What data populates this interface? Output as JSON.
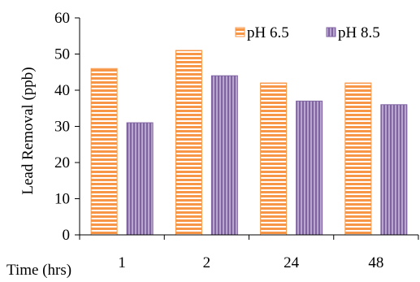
{
  "chart_data": {
    "type": "bar",
    "categories": [
      "1",
      "2",
      "24",
      "48"
    ],
    "series": [
      {
        "name": "pH 6.5",
        "values": [
          46,
          51,
          42,
          42
        ],
        "color": "#f79646",
        "pattern": "horizontal-stripes"
      },
      {
        "name": "pH 8.5",
        "values": [
          31,
          44,
          37,
          36
        ],
        "color": "#8064a2",
        "pattern": "vertical-stripes"
      }
    ],
    "xlabel": "Time (hrs)",
    "ylabel": "Lead Removal (ppb)",
    "ylim": [
      0,
      60
    ],
    "yticks": [
      "0",
      "10",
      "20",
      "30",
      "40",
      "50",
      "60"
    ],
    "grid": false,
    "legend_position": "top-right"
  }
}
